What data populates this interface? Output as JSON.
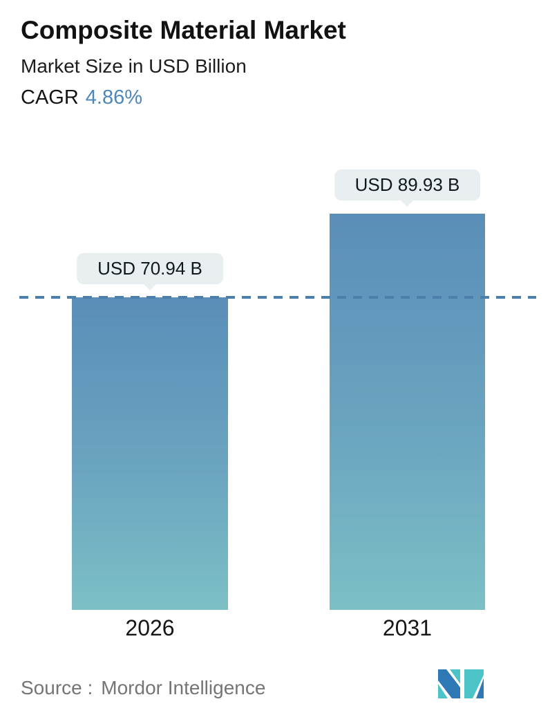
{
  "header": {
    "title": "Composite Material Market",
    "subtitle": "Market Size in USD Billion",
    "cagr_label": "CAGR",
    "cagr_value": "4.86%"
  },
  "chart_data": {
    "type": "bar",
    "categories": [
      "2026",
      "2031"
    ],
    "values": [
      70.94,
      89.93
    ],
    "value_labels": [
      "USD 70.94 B",
      "USD 89.93 B"
    ],
    "title": "Composite Material Market",
    "subtitle": "Market Size in USD Billion",
    "xlabel": "",
    "ylabel": "Market Size in USD Billion",
    "ylim": [
      0,
      94
    ],
    "grid": false,
    "legend": false,
    "reference_line": {
      "value": 70.94,
      "style": "dashed",
      "color": "#4c7fa9"
    },
    "bar_gradient": {
      "top": "#5a8eb8",
      "bottom": "#7cc0c5"
    },
    "tooltip_bg": "#e9eff1"
  },
  "footer": {
    "source_label": "Source :",
    "source_value": "Mordor Intelligence",
    "logo_name": "mordor-intelligence-logo",
    "logo_blue": "#2e78b6",
    "logo_teal": "#4cc3c7"
  },
  "colors": {
    "accent_blue": "#4f86b8",
    "dash_line": "#4c7fa9",
    "text_dark": "#121212",
    "text_gray": "#757575",
    "background": "#ffffff"
  }
}
